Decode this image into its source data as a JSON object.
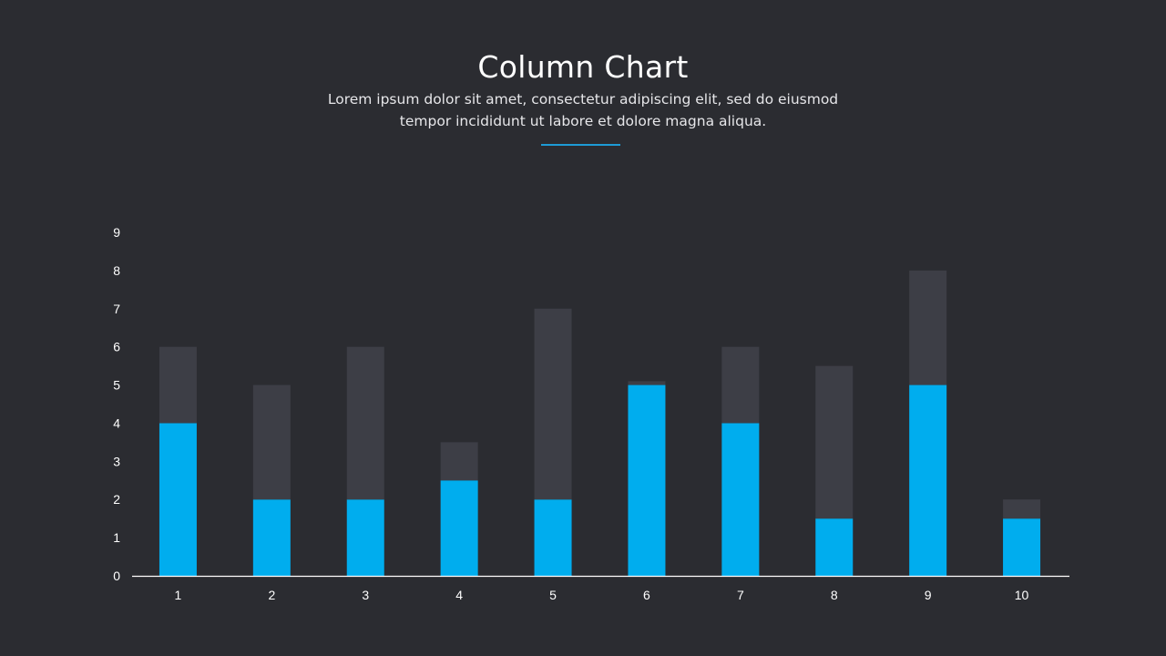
{
  "slide": {
    "title": "Column Chart",
    "subtitle_line1": "Lorem ipsum dolor sit amet, consectetur adipiscing elit, sed do eiusmod",
    "subtitle_line2": "tempor incididunt  ut labore et dolore magna aliqua."
  },
  "colors": {
    "background": "#2b2c31",
    "series_primary": "#00adee",
    "series_secondary": "#3d3e46",
    "accent": "#1d9bd6",
    "axis": "#ffffff"
  },
  "chart_data": {
    "type": "bar",
    "stacked": true,
    "title": "Column Chart",
    "xlabel": "",
    "ylabel": "",
    "categories": [
      "1",
      "2",
      "3",
      "4",
      "5",
      "6",
      "7",
      "8",
      "9",
      "10"
    ],
    "series": [
      {
        "values": [
          4,
          2,
          2,
          2.5,
          2,
          5,
          4,
          1.5,
          5,
          1.5
        ],
        "color": "#00adee"
      },
      {
        "values": [
          2,
          3,
          4,
          1,
          5,
          0.1,
          2,
          4,
          3,
          0.5
        ],
        "color": "#3d3e46"
      }
    ],
    "ylim": [
      0,
      9
    ],
    "yticks": [
      0,
      1,
      2,
      3,
      4,
      5,
      6,
      7,
      8,
      9
    ],
    "grid": false,
    "legend": "none"
  }
}
